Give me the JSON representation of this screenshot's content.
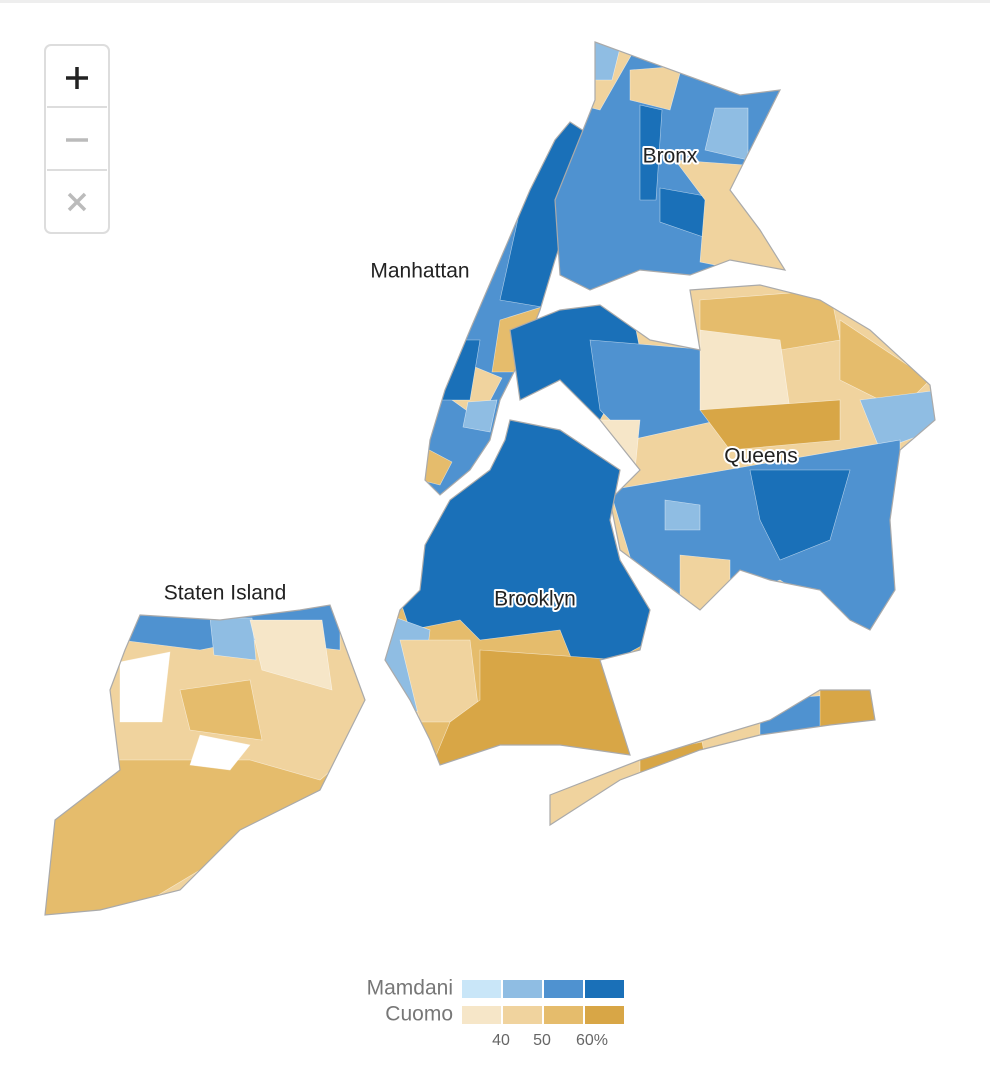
{
  "map": {
    "labels": [
      "Manhattan",
      "Bronx",
      "Queens",
      "Brooklyn",
      "Staten Island"
    ]
  },
  "legend": {
    "rows": [
      {
        "name": "Mamdani",
        "colors": [
          "#c9e6f8",
          "#8fbde3",
          "#4f92d0",
          "#1a70b8"
        ]
      },
      {
        "name": "Cuomo",
        "colors": [
          "#f6e6c8",
          "#f0d39e",
          "#e5bc6c",
          "#d8a646"
        ]
      }
    ],
    "ticks": [
      40,
      50,
      {
        "value": 60,
        "label": "60%"
      }
    ]
  }
}
